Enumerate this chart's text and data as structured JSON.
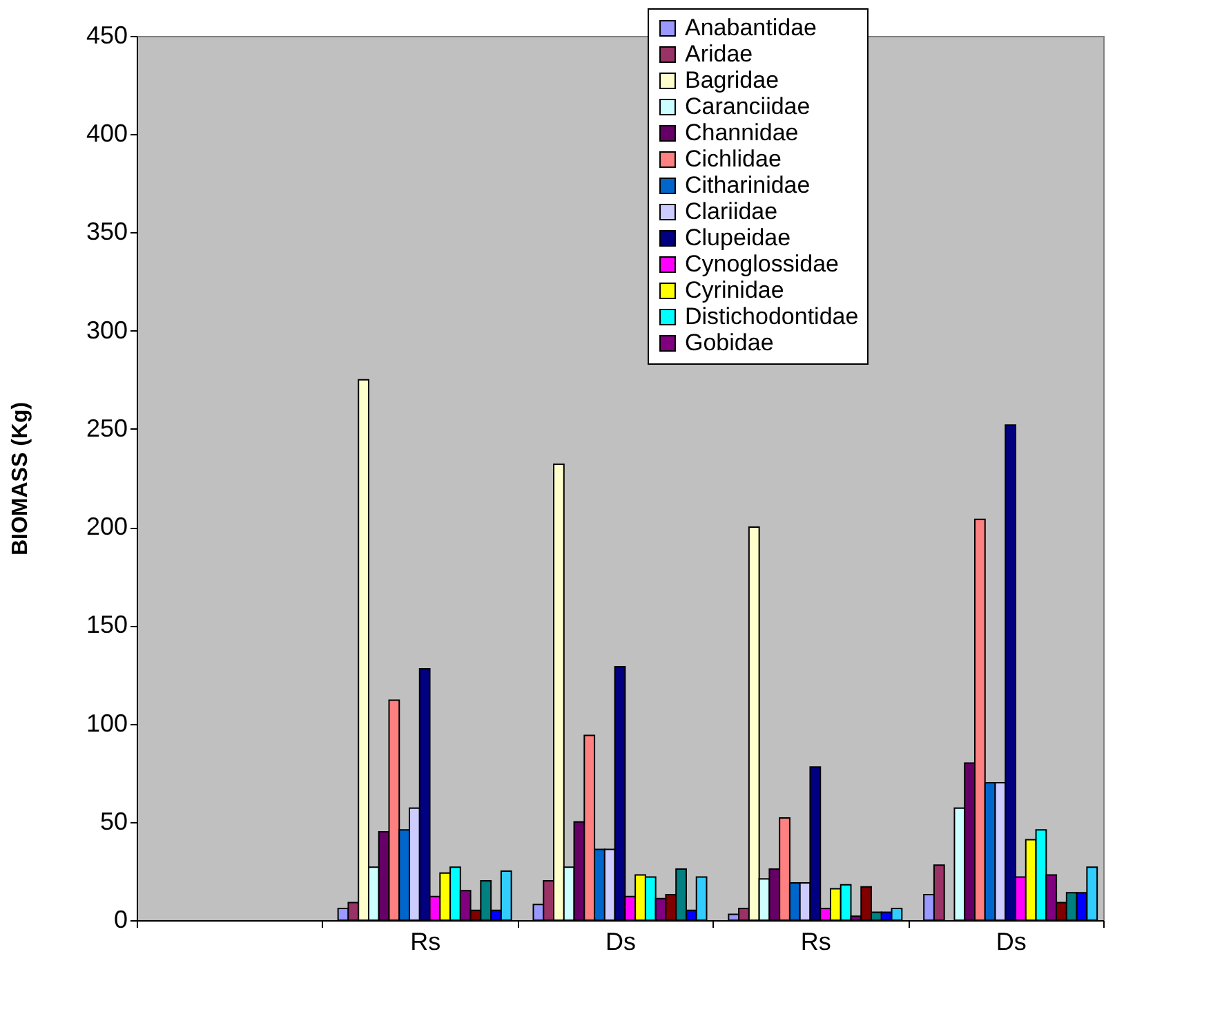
{
  "chart_data": {
    "type": "bar",
    "ylabel": "BIOMASS (Kg)",
    "categories": [
      null,
      "Rs",
      "Ds",
      "Rs",
      "Ds"
    ],
    "ylim": [
      0,
      450
    ],
    "yticks": [
      0,
      50,
      100,
      150,
      200,
      250,
      300,
      350,
      400,
      450
    ],
    "grid": false,
    "legend": "top right",
    "series": [
      {
        "name": "Anabantidae",
        "color": "#9999ff",
        "values": [
          null,
          6,
          8,
          3,
          13
        ]
      },
      {
        "name": "Aridae",
        "color": "#993366",
        "values": [
          null,
          9,
          20,
          6,
          28
        ]
      },
      {
        "name": "Bagridae",
        "color": "#ffffcc",
        "values": [
          null,
          275,
          232,
          200,
          null
        ]
      },
      {
        "name": "Caranciidae",
        "color": "#ccffff",
        "values": [
          null,
          27,
          27,
          21,
          57
        ]
      },
      {
        "name": "Channidae",
        "color": "#660066",
        "values": [
          null,
          45,
          50,
          26,
          80
        ]
      },
      {
        "name": "Cichlidae",
        "color": "#ff8080",
        "values": [
          null,
          112,
          94,
          52,
          204
        ]
      },
      {
        "name": "Citharinidae",
        "color": "#0066cc",
        "values": [
          null,
          46,
          36,
          19,
          70
        ]
      },
      {
        "name": "Clariidae",
        "color": "#ccccff",
        "values": [
          null,
          57,
          36,
          19,
          70
        ]
      },
      {
        "name": "Clupeidae",
        "color": "#000080",
        "values": [
          null,
          128,
          129,
          78,
          252
        ]
      },
      {
        "name": "Cynoglossidae",
        "color": "#ff00ff",
        "values": [
          null,
          12,
          12,
          6,
          22
        ]
      },
      {
        "name": "Cyrinidae",
        "color": "#ffff00",
        "values": [
          null,
          24,
          23,
          16,
          41
        ]
      },
      {
        "name": "Distichodontidae",
        "color": "#00ffff",
        "values": [
          null,
          27,
          22,
          18,
          46
        ]
      },
      {
        "name": "Gobidae",
        "color": "#800080",
        "values": [
          null,
          15,
          11,
          2,
          23
        ]
      },
      {
        "color": "#800000",
        "values": [
          null,
          5,
          13,
          17,
          9
        ]
      },
      {
        "color": "#008080",
        "values": [
          null,
          20,
          26,
          4,
          14
        ]
      },
      {
        "color": "#0000ff",
        "values": [
          null,
          5,
          5,
          4,
          14
        ]
      },
      {
        "color": "#33ccff",
        "values": [
          null,
          25,
          22,
          6,
          27
        ]
      }
    ]
  }
}
